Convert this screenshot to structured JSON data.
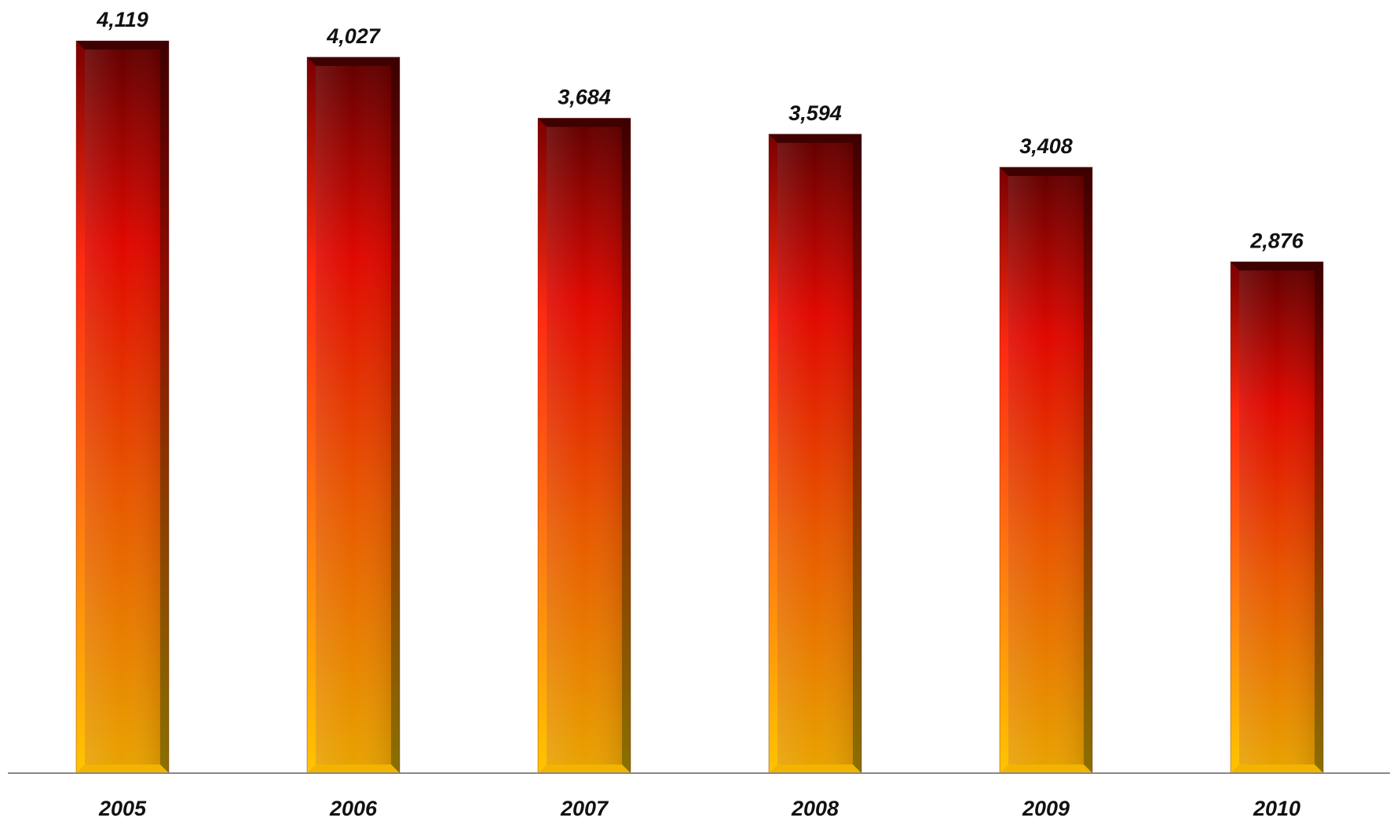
{
  "chart_data": {
    "type": "bar",
    "categories": [
      "2005",
      "2006",
      "2007",
      "2008",
      "2009",
      "2010"
    ],
    "values": [
      4119,
      4027,
      3684,
      3594,
      3408,
      2876
    ],
    "value_labels": [
      "4,119",
      "4,027",
      "3,684",
      "3,594",
      "3,408",
      "2,876"
    ],
    "title": "",
    "xlabel": "",
    "ylabel": "",
    "ylim": [
      0,
      4119
    ],
    "grid": false,
    "legend": "none",
    "colors": {
      "bar_top": "#5e0000",
      "bar_mid": "#e80a00",
      "bar_bottom": "#e6a000",
      "axis": "#888888",
      "label": "#111111"
    }
  }
}
